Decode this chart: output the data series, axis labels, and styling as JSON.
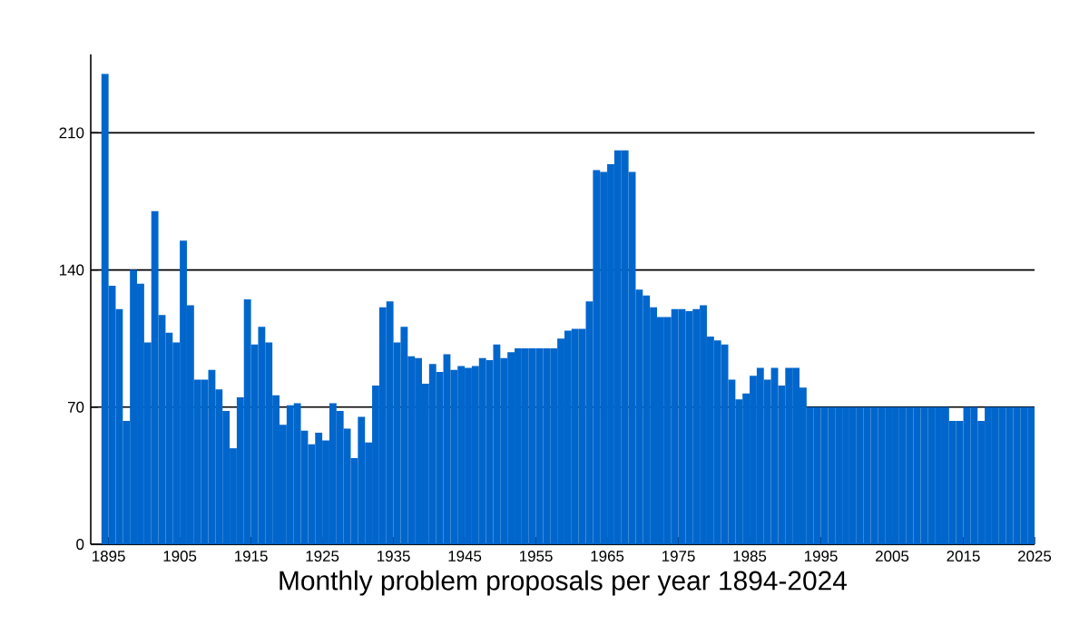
{
  "chart_data": {
    "type": "histogram",
    "xlabel": "Monthly problem proposals per year 1894-2024",
    "bins": [
      1894,
      1895,
      1896,
      1897,
      1898,
      1899,
      1900,
      1901,
      1902,
      1903,
      1904,
      1905,
      1906,
      1907,
      1908,
      1909,
      1910,
      1911,
      1912,
      1913,
      1914,
      1915,
      1916,
      1917,
      1918,
      1919,
      1920,
      1921,
      1922,
      1923,
      1924,
      1925,
      1926,
      1927,
      1928,
      1929,
      1930,
      1931,
      1932,
      1933,
      1934,
      1935,
      1936,
      1937,
      1938,
      1939,
      1940,
      1941,
      1942,
      1943,
      1944,
      1945,
      1946,
      1947,
      1948,
      1949,
      1950,
      1951,
      1952,
      1953,
      1954,
      1955,
      1956,
      1957,
      1958,
      1959,
      1960,
      1961,
      1962,
      1963,
      1964,
      1965,
      1966,
      1967,
      1968,
      1969,
      1970,
      1971,
      1972,
      1973,
      1974,
      1975,
      1976,
      1977,
      1978,
      1979,
      1980,
      1981,
      1982,
      1983,
      1984,
      1985,
      1986,
      1987,
      1988,
      1989,
      1990,
      1991,
      1992,
      1993,
      1994,
      1995,
      1996,
      1997,
      1998,
      1999,
      2000,
      2001,
      2002,
      2003,
      2004,
      2005,
      2006,
      2007,
      2008,
      2009,
      2010,
      2011,
      2012,
      2013,
      2014,
      2015,
      2016,
      2017,
      2018,
      2019,
      2020,
      2021,
      2022,
      2023,
      2024,
      2025
    ],
    "values": [
      240,
      132,
      120,
      63,
      140,
      133,
      103,
      170,
      117,
      108,
      103,
      155,
      122,
      84,
      84,
      89,
      79,
      68,
      49,
      75,
      125,
      102,
      111,
      103,
      76,
      61,
      71,
      72,
      58,
      51,
      57,
      53,
      72,
      68,
      59,
      44,
      65,
      52,
      81,
      121,
      124,
      103,
      111,
      96,
      95,
      82,
      92,
      88,
      97,
      89,
      91,
      90,
      91,
      95,
      94,
      102,
      95,
      98,
      100,
      100,
      100,
      100,
      100,
      100,
      105,
      109,
      110,
      110,
      124,
      191,
      190,
      194,
      201,
      201,
      190,
      130,
      127,
      121,
      116,
      116,
      120,
      120,
      119,
      120,
      122,
      106,
      104,
      102,
      84,
      74,
      77,
      86,
      90,
      84,
      90,
      81,
      90,
      90,
      80,
      70,
      70,
      70,
      70,
      70,
      70,
      70,
      70,
      70,
      70,
      70,
      70,
      70,
      70,
      70,
      70,
      70,
      70,
      70,
      70,
      63,
      63,
      70,
      70,
      63,
      70,
      70,
      70,
      70,
      70,
      70,
      70
    ],
    "color": "#0066cc",
    "xlim": [
      1892.5,
      2025
    ],
    "ylim": [
      0,
      250
    ],
    "xticks": [
      1895,
      1905,
      1915,
      1925,
      1935,
      1945,
      1955,
      1965,
      1975,
      1985,
      1995,
      2005,
      2015,
      2025
    ],
    "yticks": [
      0,
      70,
      140,
      210
    ],
    "grid": "y"
  }
}
